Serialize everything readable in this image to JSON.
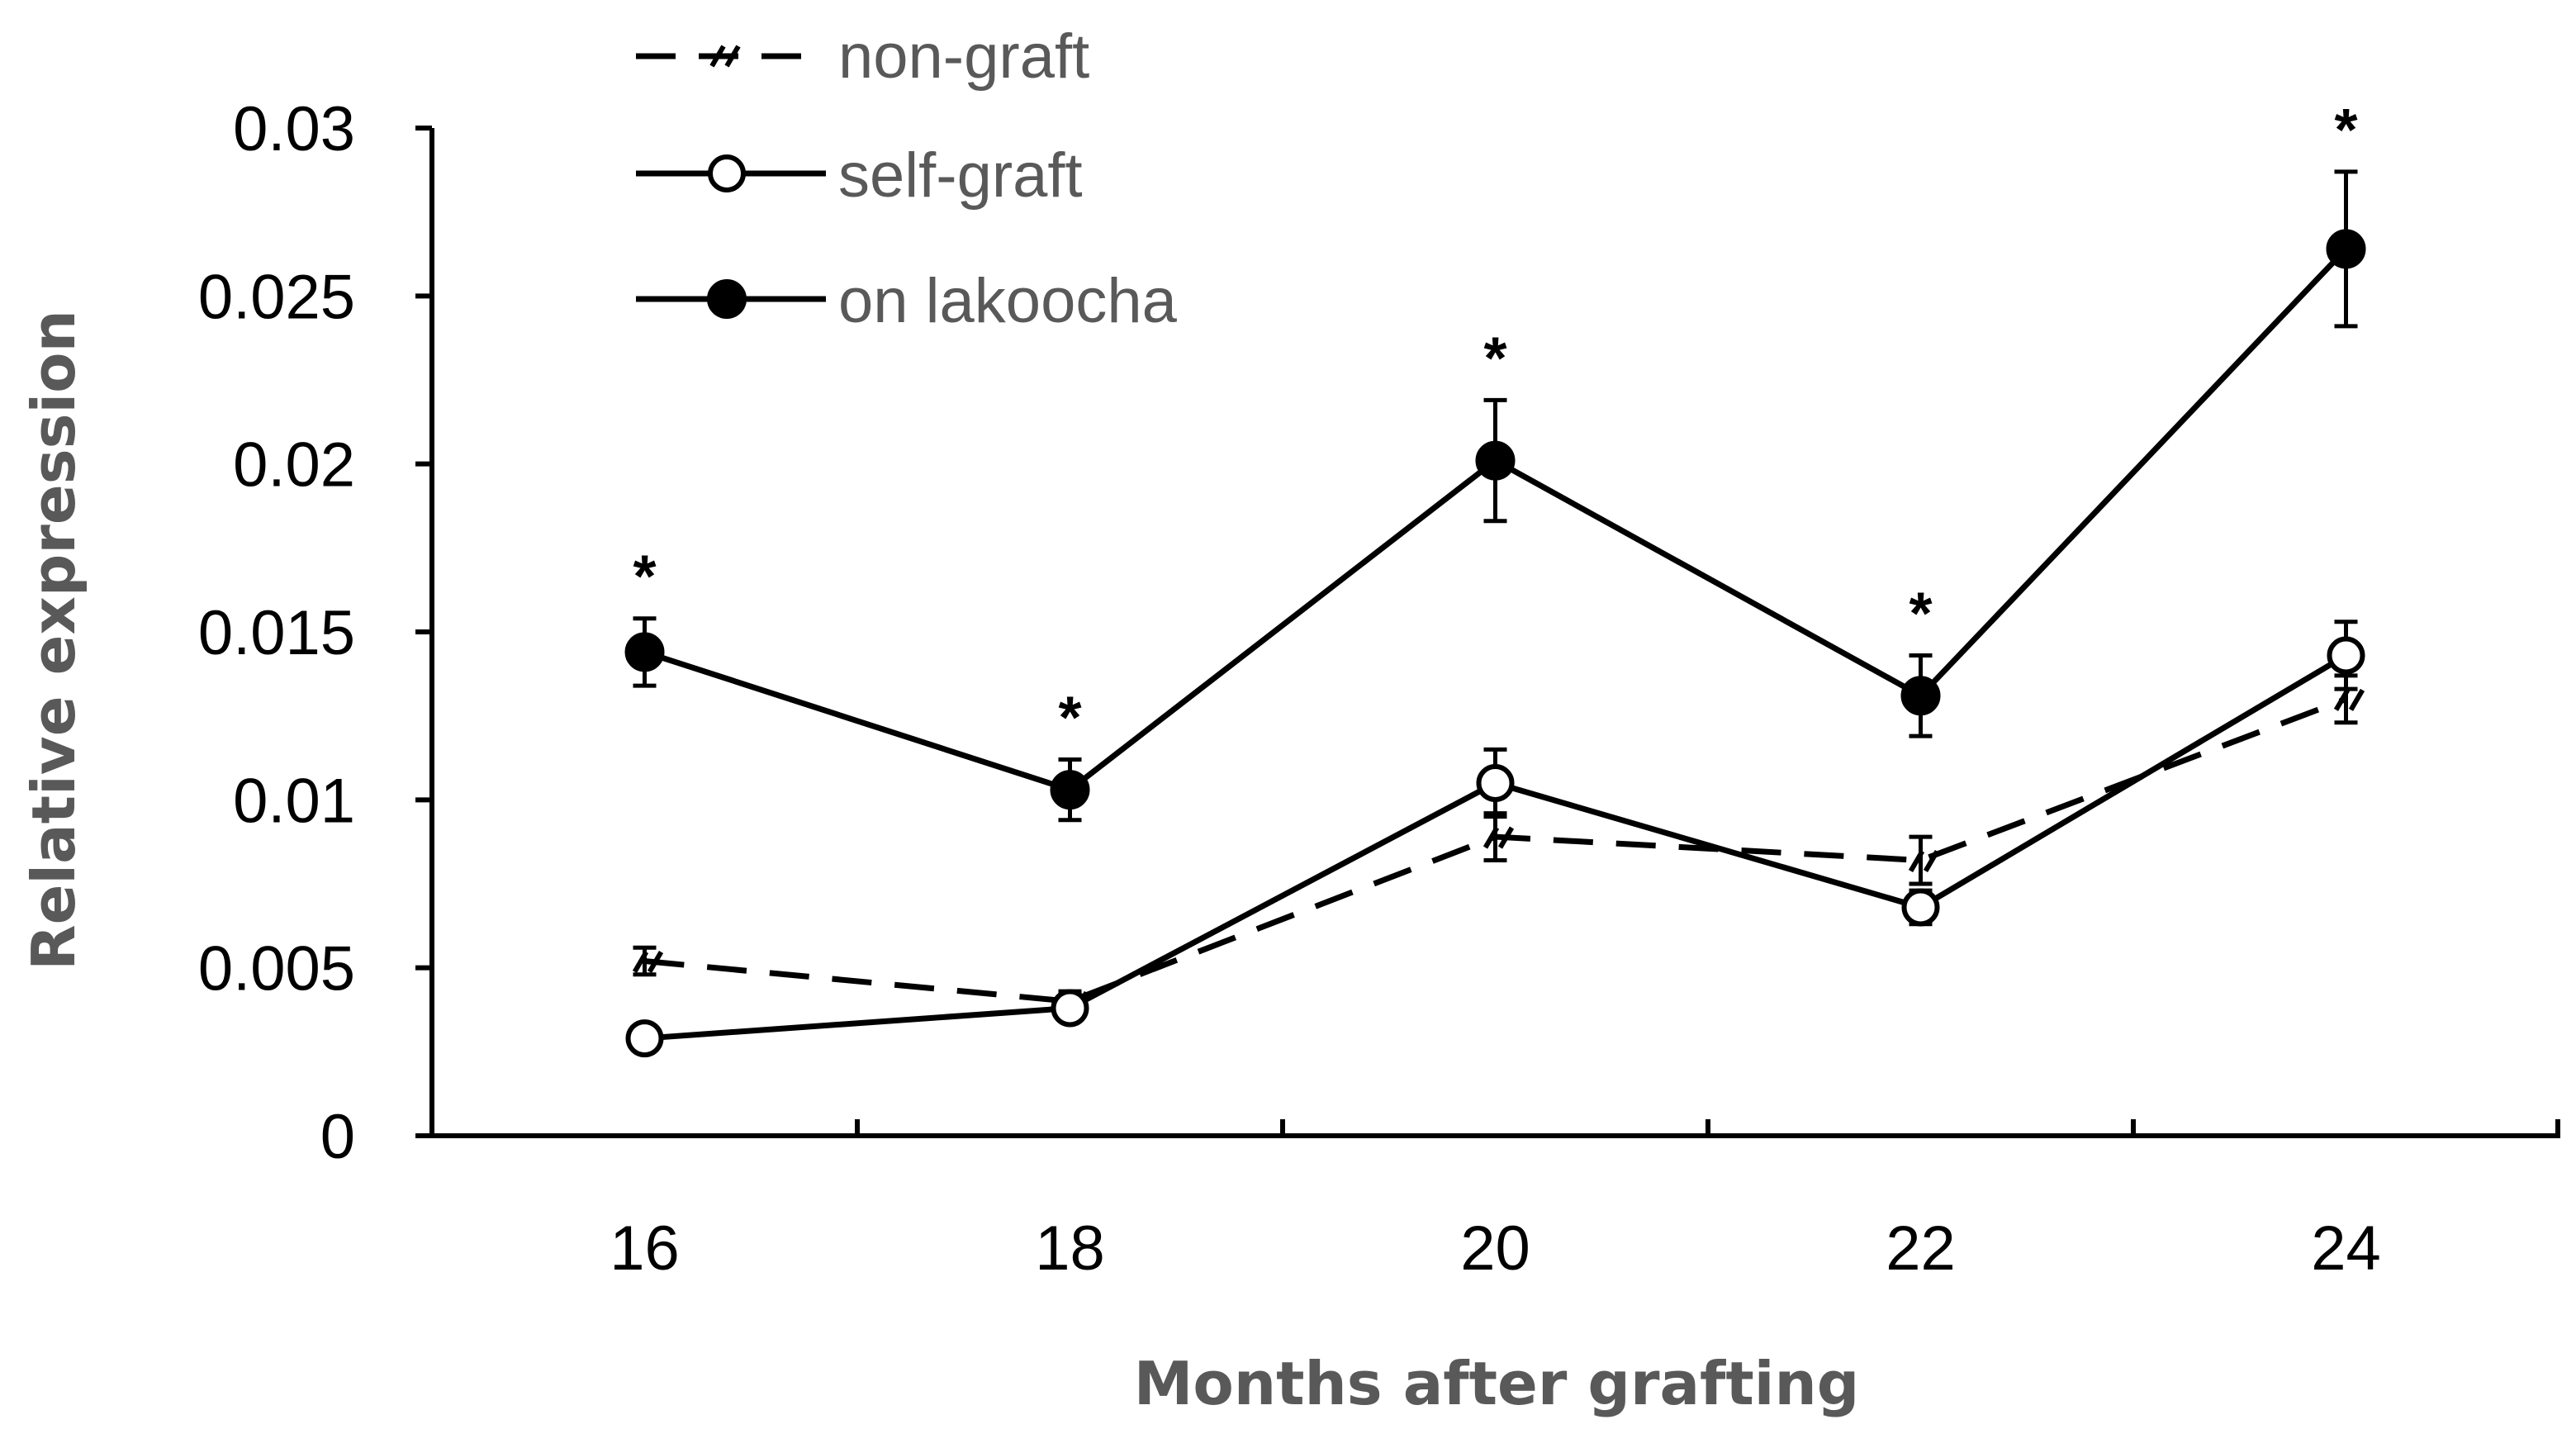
{
  "chart_data": {
    "type": "line",
    "title": "",
    "xlabel": "Months after grafting",
    "ylabel": "Relative expression",
    "x": [
      16,
      18,
      20,
      22,
      24
    ],
    "x_tick_labels": [
      "16",
      "18",
      "20",
      "22",
      "24"
    ],
    "ylim": [
      0,
      0.03
    ],
    "y_ticks": [
      0,
      0.005,
      0.01,
      0.015,
      0.02,
      0.025,
      0.03
    ],
    "y_tick_labels": [
      "0",
      "0.005",
      "0.01",
      "0.015",
      "0.02",
      "0.025",
      "0.03"
    ],
    "grid": false,
    "legend_position": "top-left",
    "series": [
      {
        "name": "non-graft",
        "style": "dashed",
        "marker": "hatched",
        "values": [
          0.0052,
          0.004,
          0.0089,
          0.0082,
          0.013
        ],
        "errors": [
          0.0004,
          0.0003,
          0.0007,
          0.0007,
          0.0007
        ]
      },
      {
        "name": "self-graft",
        "style": "solid",
        "marker": "open-circle",
        "values": [
          0.0029,
          0.0038,
          0.0105,
          0.0068,
          0.0143
        ],
        "errors": [
          0.0002,
          0.0003,
          0.001,
          0.0005,
          0.001
        ]
      },
      {
        "name": "on lakoocha",
        "style": "solid",
        "marker": "filled-circle",
        "values": [
          0.0144,
          0.0103,
          0.0201,
          0.0131,
          0.0264
        ],
        "errors": [
          0.001,
          0.0009,
          0.0018,
          0.0012,
          0.0023
        ]
      }
    ],
    "annotations": [
      {
        "x": 16,
        "text": "*"
      },
      {
        "x": 18,
        "text": "*"
      },
      {
        "x": 20,
        "text": "*"
      },
      {
        "x": 22,
        "text": "*"
      },
      {
        "x": 24,
        "text": "*"
      }
    ]
  }
}
